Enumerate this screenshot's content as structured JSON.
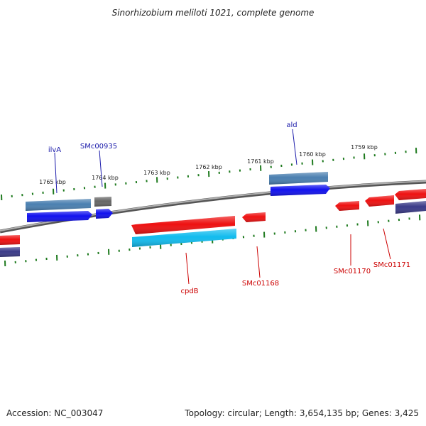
{
  "title": "Sinorhizobium meliloti 1021, complete genome",
  "footer": {
    "accession": "Accession: NC_003047",
    "summary": "Topology: circular; Length: 3,654,135 bp; Genes: 3,425"
  },
  "colors": {
    "backbone": "#8a8a8a",
    "tick": "#1e7a1e",
    "label_top": "#1a1aaa",
    "label_bottom": "#cc0000",
    "gene_red": "#ee1111",
    "gene_blue": "#1111ee",
    "gene_steel": "#4a7fb0",
    "gene_cyan": "#11bbee",
    "gene_grey": "#666666",
    "gene_slate": "#3a3a88"
  },
  "tick_labels": [
    "1765 kbp",
    "1764 kbp",
    "1763 kbp",
    "1762 kbp",
    "1761 kbp",
    "1760 kbp",
    "1759 kbp"
  ],
  "gene_labels_top": [
    "ilvA",
    "SMc00935",
    "ald"
  ],
  "gene_labels_bottom": [
    "cpdB",
    "SMc01168",
    "SMc01170",
    "SMc01171"
  ]
}
